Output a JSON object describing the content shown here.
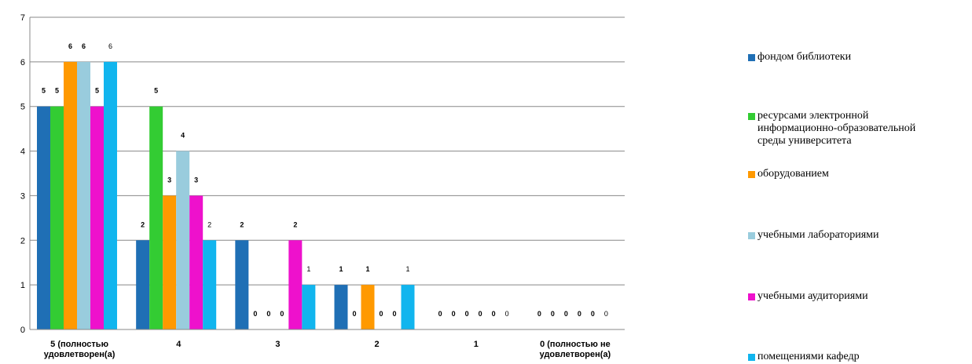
{
  "chart_data": {
    "type": "bar",
    "categories": [
      "5 (полностью\nудовлетворен(а)",
      "4",
      "3",
      "2",
      "1",
      "0 (полностью не\nудовлетворен(а)"
    ],
    "series": [
      {
        "name": "фондом библиотеки",
        "color": "#1F6FB5",
        "values": [
          5,
          2,
          2,
          1,
          0,
          0
        ],
        "label_bold": [
          true,
          true,
          true,
          true,
          true,
          true
        ]
      },
      {
        "name": "ресурсами электронной\nинформационно-образовательной\nсреды университета",
        "color": "#33CC33",
        "values": [
          5,
          5,
          0,
          0,
          0,
          0
        ],
        "label_bold": [
          true,
          true,
          true,
          true,
          true,
          true
        ]
      },
      {
        "name": "оборудованием",
        "color": "#FF9900",
        "values": [
          6,
          3,
          0,
          1,
          0,
          0
        ],
        "label_bold": [
          true,
          true,
          true,
          true,
          true,
          true
        ]
      },
      {
        "name": "учебными лабораториями",
        "color": "#99CCDD",
        "values": [
          6,
          4,
          0,
          0,
          0,
          0
        ],
        "label_bold": [
          true,
          true,
          true,
          true,
          true,
          true
        ]
      },
      {
        "name": "учебными аудиториями",
        "color": "#EE11CC",
        "values": [
          5,
          3,
          2,
          0,
          0,
          0
        ],
        "label_bold": [
          true,
          true,
          true,
          true,
          true,
          true
        ]
      },
      {
        "name": "помещениями кафедр",
        "color": "#11B5EE",
        "values": [
          6,
          2,
          1,
          1,
          0,
          0
        ],
        "label_bold": [
          false,
          false,
          false,
          false,
          false,
          false
        ]
      }
    ],
    "ylim": [
      0,
      7
    ],
    "yticks": [
      "0",
      "1",
      "2",
      "3",
      "4",
      "5",
      "6",
      "7"
    ],
    "grid": true,
    "legend_position": "right",
    "axis_color": "#888888"
  }
}
